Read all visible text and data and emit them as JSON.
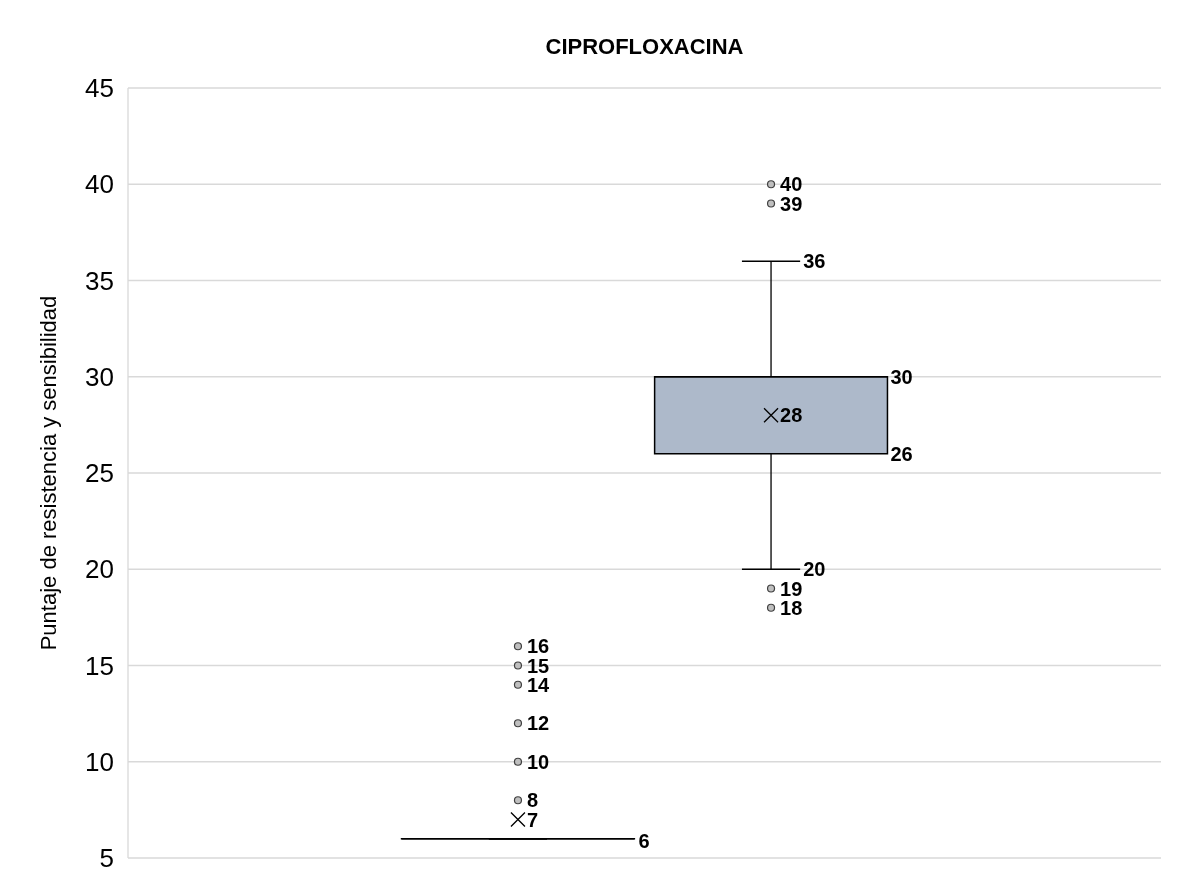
{
  "chart_data": {
    "type": "box",
    "title": "CIPROFLOXACINA",
    "ylabel": "Puntaje de resistencia y sensibilidad",
    "categories": [
      null
    ],
    "series": [
      {
        "color": "#000000",
        "boxes": [
          {
            "low": 6,
            "q1": 6,
            "median": 6,
            "q3": 6,
            "high": 6,
            "mean": 7,
            "outliers": [
              8,
              10,
              12,
              14,
              15,
              16
            ]
          }
        ]
      },
      {
        "color": "#adb9ca",
        "boxes": [
          {
            "low": 20,
            "q1": 26,
            "median": 30,
            "q3": 30,
            "high": 36,
            "mean": 28,
            "outliers": [
              18,
              19,
              39,
              40
            ]
          }
        ]
      }
    ],
    "annotations": [
      "6",
      "7",
      "8",
      "10",
      "12",
      "14",
      "15",
      "16",
      "20",
      "26",
      "30",
      "36",
      "28",
      "18",
      "19",
      "39",
      "40"
    ],
    "ylim": [
      5,
      45
    ],
    "yticks": [
      5,
      10,
      15,
      20,
      25,
      30,
      35,
      40,
      45
    ],
    "grid": "y"
  }
}
